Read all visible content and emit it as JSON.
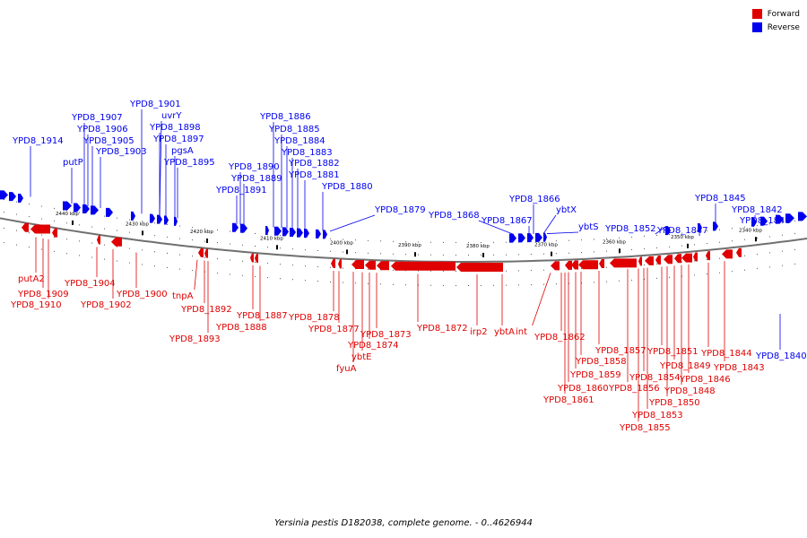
{
  "caption": "Yersinia pestis D182038, complete genome. - 0..4626944",
  "colors": {
    "forward": "#e00000",
    "reverse": "#0000ee",
    "backbone": "#707070"
  },
  "legend": [
    {
      "label": "Forward",
      "color": "#e00000"
    },
    {
      "label": "Reverse",
      "color": "#0000ee"
    }
  ],
  "ticks": [
    "2440 kbp",
    "2430 kbp",
    "2420 kbp",
    "2410 kbp",
    "2400 kbp",
    "2390 kbp",
    "2380 kbp",
    "2370 kbp",
    "2360 kbp",
    "2350 kbp",
    "2340 kbp"
  ],
  "reverse_labels": [
    "YPD8_1914",
    "putP",
    "YPD8_1907",
    "YPD8_1906",
    "YPD8_1905",
    "YPD8_1903",
    "YPD8_1901",
    "uvrY",
    "YPD8_1898",
    "YPD8_1897",
    "pgsA",
    "YPD8_1895",
    "YPD8_1891",
    "YPD8_1890",
    "YPD8_1889",
    "YPD8_1886",
    "YPD8_1885",
    "YPD8_1884",
    "YPD8_1883",
    "YPD8_1882",
    "YPD8_1881",
    "YPD8_1880",
    "YPD8_1879",
    "YPD8_1868",
    "YPD8_1867",
    "YPD8_1866",
    "ybtX",
    "ybtS",
    "YPD8_1852",
    "YPD8_1847",
    "YPD8_1845",
    "YPD8_1842",
    "YPD8_1841",
    "YPD8_1840"
  ],
  "forward_labels": [
    "putA2",
    "YPD8_1909",
    "YPD8_1910",
    "YPD8_1904",
    "YPD8_1902",
    "YPD8_1900",
    "tnpA",
    "YPD8_1892",
    "YPD8_1893",
    "YPD8_1887",
    "YPD8_1888",
    "YPD8_1878",
    "YPD8_1877",
    "fyuA",
    "ybtE",
    "YPD8_1874",
    "YPD8_1873",
    "YPD8_1872",
    "irp2",
    "ybtA",
    "int",
    "YPD8_1862",
    "YPD8_1861",
    "YPD8_1860",
    "YPD8_1859",
    "YPD8_1858",
    "YPD8_1857",
    "YPD8_1856",
    "YPD8_1855",
    "YPD8_1854",
    "YPD8_1853",
    "YPD8_1851",
    "YPD8_1850",
    "YPD8_1849",
    "YPD8_1848",
    "YPD8_1846",
    "YPD8_1844",
    "YPD8_1843"
  ]
}
